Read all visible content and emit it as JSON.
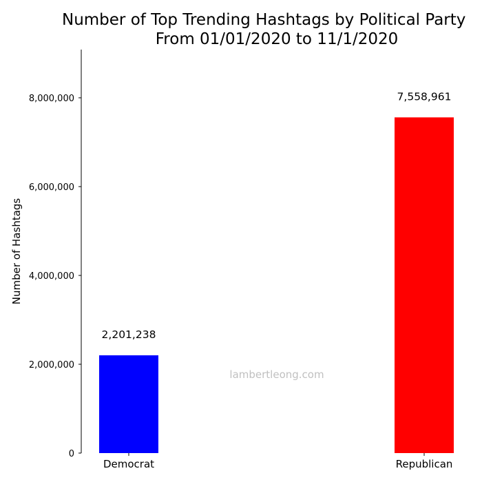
{
  "chart_data": {
    "type": "bar",
    "title": "Number of Top Trending Hashtags by Political Party",
    "title_visible": "Number of Top Trending Hashtags by Political Party",
    "subtitle": "From 01/01/2020 to 11/1/2020",
    "xlabel": "",
    "ylabel": "Number of Hashtags",
    "categories": [
      "Democrat",
      "Republican"
    ],
    "values": [
      2201238,
      7558961
    ],
    "value_labels": [
      "2,201,238",
      "7,558,961"
    ],
    "colors": [
      "#0000ff",
      "#ff0000"
    ],
    "ylim": [
      0,
      9000000
    ],
    "yticks": [
      0,
      2000000,
      4000000,
      6000000,
      8000000
    ],
    "ytick_labels": [
      "0",
      "2,000,000",
      "4,000,000",
      "6,000,000",
      "8,000,000"
    ],
    "grid": false,
    "legend": "none"
  },
  "watermark": "lambertleong.com"
}
